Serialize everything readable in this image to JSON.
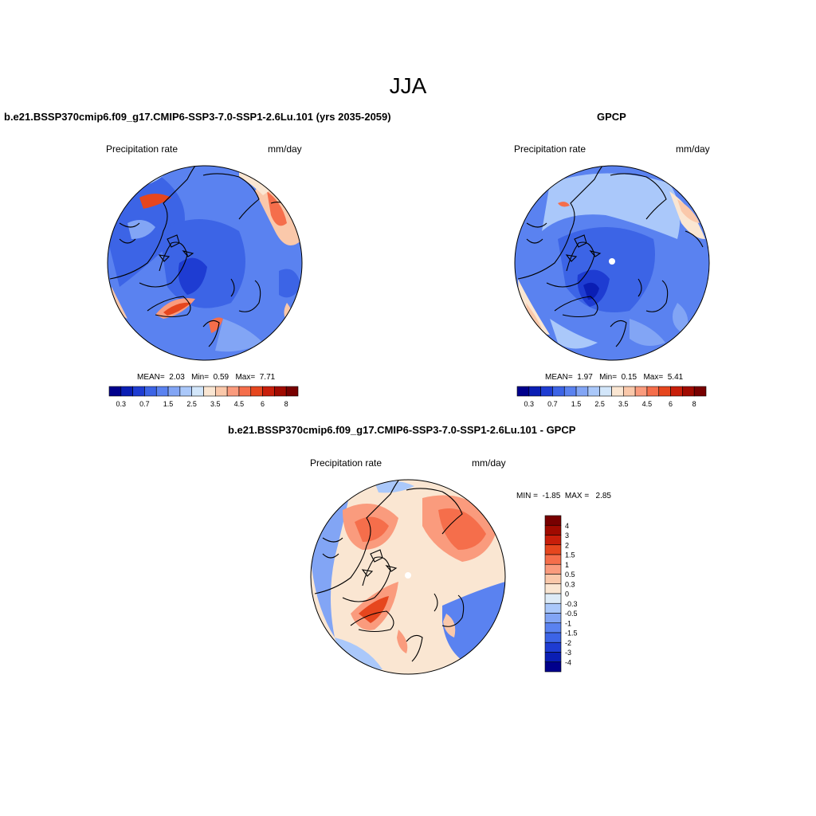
{
  "season": "JJA",
  "panels": [
    {
      "title": "b.e21.BSSP370cmip6.f09_g17.CMIP6-SSP3-7.0-SSP1-2.6Lu.101 (yrs 2035-2059)",
      "variable": "Precipitation rate",
      "units": "mm/day",
      "stats": {
        "mean_label": "MEAN=",
        "mean": "2.03",
        "min_label": "Min=",
        "min": "0.59",
        "max_label": "Max=",
        "max": "7.71"
      }
    },
    {
      "title": "GPCP",
      "variable": "Precipitation rate",
      "units": "mm/day",
      "stats": {
        "mean_label": "MEAN=",
        "mean": "1.97",
        "min_label": "Min=",
        "min": "0.15",
        "max_label": "Max=",
        "max": "5.41"
      }
    },
    {
      "title": "b.e21.BSSP370cmip6.f09_g17.CMIP6-SSP3-7.0-SSP1-2.6Lu.101 - GPCP",
      "variable": "Precipitation rate",
      "units": "mm/day",
      "minmax": {
        "min_label": "MIN =",
        "min": "-1.85",
        "max_label": "MAX =",
        "max": "2.85"
      }
    }
  ],
  "colorbar_abs": {
    "colors": [
      "#00008c",
      "#0a1eb4",
      "#1e3cd2",
      "#3c64e6",
      "#5a82f0",
      "#82a5f5",
      "#aac8fa",
      "#d2e6fa",
      "#fae6d2",
      "#fac8aa",
      "#fa9b7d",
      "#f56e4b",
      "#e6461e",
      "#c81e0a",
      "#a00a00",
      "#780000"
    ],
    "tick_labels": [
      "0.3",
      "0.7",
      "1.5",
      "2.5",
      "3.5",
      "4.5",
      "6",
      "8"
    ]
  },
  "colorbar_diff": {
    "colors": [
      "#780000",
      "#a00a00",
      "#c81e0a",
      "#e6461e",
      "#f56e4b",
      "#fa9b7d",
      "#fac8aa",
      "#fae6d2",
      "#ddebf7",
      "#aac8fa",
      "#82a5f5",
      "#5a82f0",
      "#3c64e6",
      "#1e3cd2",
      "#0a1eb4",
      "#00008c"
    ],
    "tick_labels": [
      "4",
      "3",
      "2",
      "1.5",
      "1",
      "0.5",
      "0.3",
      "0",
      "-0.3",
      "-0.5",
      "-1",
      "-1.5",
      "-2",
      "-3",
      "-4"
    ]
  }
}
